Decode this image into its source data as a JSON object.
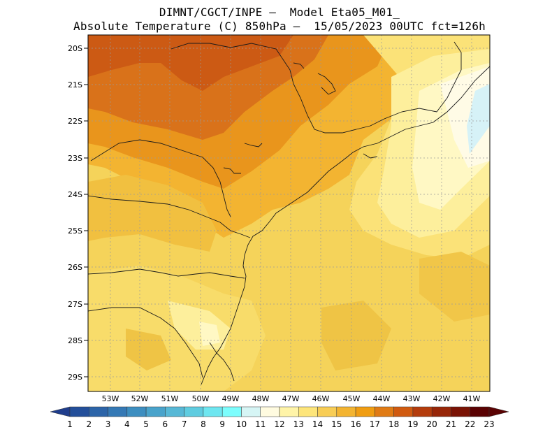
{
  "header": {
    "line1": "DIMNT/CGCT/INPE —  Model Eta05_M01_",
    "line2": "Absolute Temperature (C) 850hPa —  15/05/2023 00UTC fct=126h"
  },
  "axes": {
    "latitudes": [
      "20S",
      "21S",
      "22S",
      "23S",
      "24S",
      "25S",
      "26S",
      "27S",
      "28S",
      "29S"
    ],
    "longitudes": [
      "53W",
      "52W",
      "51W",
      "50W",
      "49W",
      "48W",
      "47W",
      "46W",
      "45W",
      "44W",
      "43W",
      "42W",
      "41W"
    ]
  },
  "colorbar": {
    "labels": [
      "1",
      "2",
      "3",
      "4",
      "5",
      "6",
      "7",
      "8",
      "9",
      "10",
      "11",
      "12",
      "13",
      "14",
      "15",
      "16",
      "17",
      "18",
      "19",
      "20",
      "21",
      "22",
      "23"
    ],
    "colors": [
      "#1f3d8c",
      "#234f9a",
      "#2c64a8",
      "#3579b5",
      "#3d8ec0",
      "#49a3cb",
      "#57b8d6",
      "#5fcce0",
      "#6ee6f0",
      "#7cfdfd",
      "#d6f5f5",
      "#fffbe0",
      "#fff4a8",
      "#fde57a",
      "#f8cd55",
      "#f3b431",
      "#f09d12",
      "#e07b15",
      "#d05a10",
      "#b43c0c",
      "#972608",
      "#7a1305",
      "#5a0203"
    ]
  },
  "map": {
    "background": "#f5d35a",
    "region": "Southeastern and Southern Brazil"
  }
}
